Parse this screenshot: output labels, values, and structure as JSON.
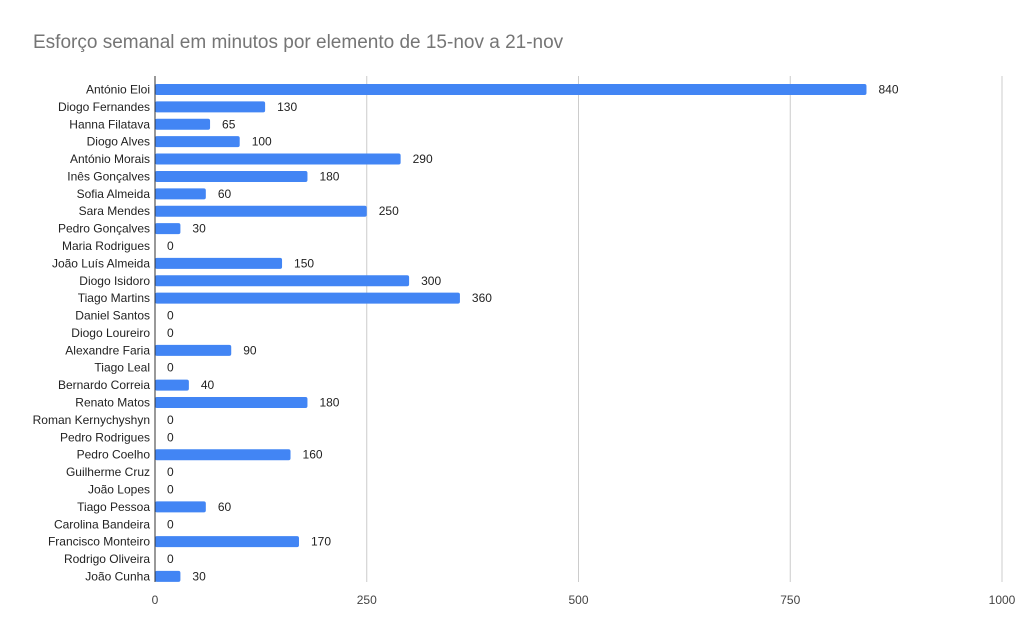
{
  "chart_data": {
    "type": "bar",
    "orientation": "horizontal",
    "title": "Esforço semanal em minutos por elemento de 15-nov a 21-nov",
    "xlabel": "",
    "ylabel": "",
    "xlim": [
      0,
      1000
    ],
    "x_ticks": [
      0,
      250,
      500,
      750,
      1000
    ],
    "grid": true,
    "legend": "none",
    "bar_color": "#4285f4",
    "categories": [
      "António Eloi",
      "Diogo Fernandes",
      "Hanna Filatava",
      "Diogo Alves",
      "António Morais",
      "Inês Gonçalves",
      "Sofia Almeida",
      "Sara Mendes",
      "Pedro Gonçalves",
      "Maria Rodrigues",
      "João Luís Almeida",
      "Diogo Isidoro",
      "Tiago Martins",
      "Daniel Santos",
      "Diogo Loureiro",
      "Alexandre Faria",
      "Tiago Leal",
      "Bernardo Correia",
      "Renato Matos",
      "Roman Kernychyshyn",
      "Pedro Rodrigues",
      "Pedro Coelho",
      "Guilherme Cruz",
      "João Lopes",
      "Tiago Pessoa",
      "Carolina Bandeira",
      "Francisco Monteiro",
      "Rodrigo Oliveira",
      "João Cunha"
    ],
    "values": [
      840,
      130,
      65,
      100,
      290,
      180,
      60,
      250,
      30,
      0,
      150,
      300,
      360,
      0,
      0,
      90,
      0,
      40,
      180,
      0,
      0,
      160,
      0,
      0,
      60,
      0,
      170,
      0,
      30
    ]
  }
}
